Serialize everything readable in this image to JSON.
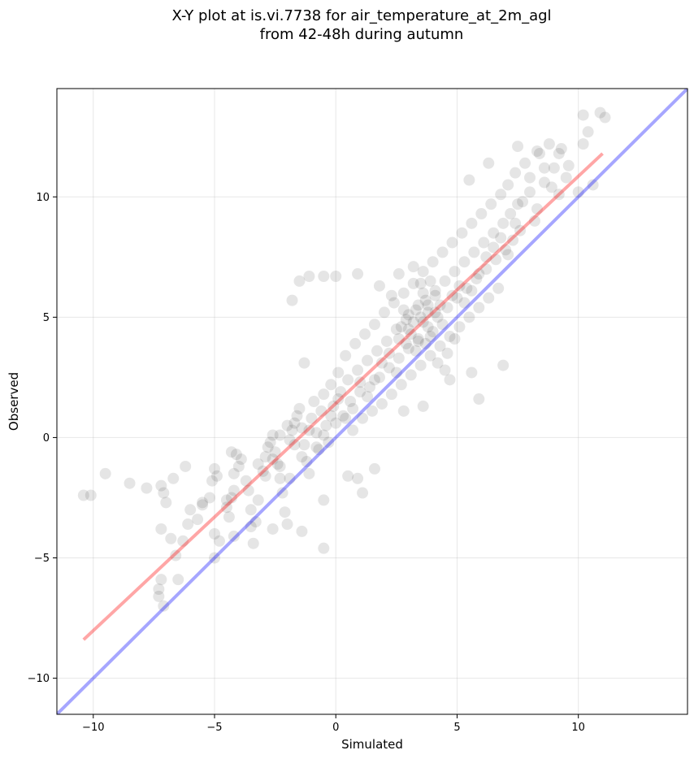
{
  "chart_data": {
    "type": "scatter",
    "title": [
      "X-Y plot at is.vi.7738 for air_temperature_at_2m_agl",
      "from 42-48h during autumn"
    ],
    "xlabel": "Simulated",
    "ylabel": "Observed",
    "xlim": [
      -11.5,
      14.5
    ],
    "ylim": [
      -11.5,
      14.5
    ],
    "xticks": [
      -10,
      -5,
      0,
      5,
      10
    ],
    "yticks": [
      -10,
      -5,
      0,
      5,
      10
    ],
    "xtick_labels": [
      "−10",
      "−5",
      "0",
      "5",
      "10"
    ],
    "ytick_labels": [
      "−10",
      "−5",
      "0",
      "5",
      "10"
    ],
    "grid": true,
    "point_color": "#000000",
    "point_alpha": 0.1,
    "lines": [
      {
        "role": "regression-fit",
        "color": "#ff0000",
        "alpha": 0.35,
        "x": [
          -10.4,
          11.0
        ],
        "y": [
          -8.4,
          11.8
        ]
      },
      {
        "role": "one-to-one",
        "color": "#0000ff",
        "alpha": 0.35,
        "x": [
          -11.5,
          14.5
        ],
        "y": [
          -11.5,
          14.5
        ]
      }
    ],
    "points": [
      [
        -10.4,
        -2.4
      ],
      [
        -10.1,
        -2.4
      ],
      [
        -9.5,
        -1.5
      ],
      [
        -8.5,
        -1.9
      ],
      [
        -7.8,
        -2.1
      ],
      [
        -7.2,
        -2.0
      ],
      [
        -7.1,
        -2.3
      ],
      [
        -7.0,
        -2.7
      ],
      [
        -6.7,
        -1.7
      ],
      [
        -6.2,
        -1.2
      ],
      [
        -7.2,
        -5.9
      ],
      [
        -7.3,
        -6.3
      ],
      [
        -7.3,
        -6.6
      ],
      [
        -7.1,
        -7.0
      ],
      [
        -7.2,
        -3.8
      ],
      [
        -6.8,
        -4.2
      ],
      [
        -6.5,
        -5.9
      ],
      [
        -6.3,
        -4.3
      ],
      [
        -6.1,
        -3.6
      ],
      [
        -6.0,
        -3.0
      ],
      [
        -5.7,
        -3.4
      ],
      [
        -5.5,
        -2.7
      ],
      [
        -5.2,
        -2.5
      ],
      [
        -5.1,
        -1.8
      ],
      [
        -5.0,
        -1.3
      ],
      [
        -4.9,
        -1.6
      ],
      [
        -5.0,
        -4.0
      ],
      [
        -4.8,
        -4.3
      ],
      [
        -4.5,
        -2.9
      ],
      [
        -4.4,
        -3.3
      ],
      [
        -4.3,
        -2.5
      ],
      [
        -4.2,
        -2.2
      ],
      [
        -4.2,
        -1.5
      ],
      [
        -4.0,
        -1.2
      ],
      [
        -4.3,
        -0.6
      ],
      [
        -4.1,
        -0.7
      ],
      [
        -3.9,
        -0.9
      ],
      [
        -3.7,
        -1.8
      ],
      [
        -3.6,
        -2.2
      ],
      [
        -3.5,
        -3.0
      ],
      [
        -3.4,
        -4.4
      ],
      [
        -3.3,
        -3.5
      ],
      [
        -3.2,
        -2.6
      ],
      [
        -3.0,
        -1.4
      ],
      [
        -2.9,
        -0.8
      ],
      [
        -2.8,
        -0.4
      ],
      [
        -2.7,
        -0.2
      ],
      [
        -2.6,
        0.1
      ],
      [
        -2.5,
        -0.6
      ],
      [
        -2.4,
        -1.1
      ],
      [
        -2.3,
        -1.7
      ],
      [
        -2.2,
        -2.3
      ],
      [
        -2.1,
        -3.1
      ],
      [
        -2.0,
        -3.6
      ],
      [
        -1.9,
        -0.1
      ],
      [
        -1.8,
        0.3
      ],
      [
        -1.7,
        0.6
      ],
      [
        -1.6,
        0.9
      ],
      [
        -1.5,
        1.2
      ],
      [
        -1.4,
        0.4
      ],
      [
        -1.3,
        -0.3
      ],
      [
        -1.2,
        -1.0
      ],
      [
        -1.1,
        -1.5
      ],
      [
        -1.0,
        0.8
      ],
      [
        -0.9,
        1.5
      ],
      [
        -0.8,
        0.2
      ],
      [
        -0.7,
        -0.5
      ],
      [
        -0.6,
        1.1
      ],
      [
        -0.5,
        1.8
      ],
      [
        -0.4,
        0.5
      ],
      [
        -0.3,
        -0.2
      ],
      [
        -0.2,
        2.2
      ],
      [
        -0.1,
        1.3
      ],
      [
        0.0,
        0.6
      ],
      [
        0.1,
        2.7
      ],
      [
        0.2,
        1.9
      ],
      [
        0.3,
        0.9
      ],
      [
        0.4,
        3.4
      ],
      [
        0.5,
        2.4
      ],
      [
        0.6,
        1.5
      ],
      [
        0.7,
        0.3
      ],
      [
        0.8,
        3.9
      ],
      [
        0.9,
        2.8
      ],
      [
        1.0,
        1.9
      ],
      [
        1.1,
        0.8
      ],
      [
        1.2,
        4.3
      ],
      [
        1.3,
        3.2
      ],
      [
        1.4,
        2.1
      ],
      [
        1.5,
        1.1
      ],
      [
        1.6,
        4.7
      ],
      [
        1.7,
        3.6
      ],
      [
        1.8,
        2.5
      ],
      [
        1.9,
        1.4
      ],
      [
        2.0,
        5.2
      ],
      [
        2.1,
        4.0
      ],
      [
        2.2,
        2.9
      ],
      [
        2.3,
        1.8
      ],
      [
        2.4,
        5.6
      ],
      [
        2.5,
        4.5
      ],
      [
        2.6,
        3.3
      ],
      [
        2.7,
        2.2
      ],
      [
        2.8,
        6.0
      ],
      [
        2.9,
        4.9
      ],
      [
        3.0,
        3.7
      ],
      [
        3.1,
        2.6
      ],
      [
        3.2,
        6.4
      ],
      [
        3.3,
        5.3
      ],
      [
        3.4,
        4.1
      ],
      [
        3.5,
        3.0
      ],
      [
        3.6,
        6.9
      ],
      [
        3.7,
        5.7
      ],
      [
        3.8,
        4.6
      ],
      [
        3.9,
        3.4
      ],
      [
        4.0,
        7.3
      ],
      [
        4.1,
        6.1
      ],
      [
        4.2,
        5.0
      ],
      [
        4.3,
        3.8
      ],
      [
        4.4,
        7.7
      ],
      [
        4.5,
        6.5
      ],
      [
        4.6,
        5.4
      ],
      [
        4.7,
        4.2
      ],
      [
        4.8,
        8.1
      ],
      [
        4.9,
        6.9
      ],
      [
        5.0,
        5.8
      ],
      [
        5.1,
        4.6
      ],
      [
        5.2,
        8.5
      ],
      [
        5.3,
        7.3
      ],
      [
        5.4,
        6.2
      ],
      [
        5.5,
        5.0
      ],
      [
        5.6,
        8.9
      ],
      [
        5.7,
        7.7
      ],
      [
        5.8,
        6.6
      ],
      [
        5.9,
        5.4
      ],
      [
        6.0,
        9.3
      ],
      [
        6.1,
        8.1
      ],
      [
        6.2,
        7.0
      ],
      [
        6.3,
        5.8
      ],
      [
        6.4,
        9.7
      ],
      [
        6.5,
        8.5
      ],
      [
        6.6,
        7.4
      ],
      [
        6.7,
        6.2
      ],
      [
        6.8,
        10.1
      ],
      [
        6.9,
        8.9
      ],
      [
        7.0,
        7.8
      ],
      [
        7.1,
        10.5
      ],
      [
        7.2,
        9.3
      ],
      [
        7.3,
        8.2
      ],
      [
        7.4,
        11.0
      ],
      [
        7.5,
        9.7
      ],
      [
        7.6,
        8.6
      ],
      [
        7.8,
        11.4
      ],
      [
        8.0,
        10.2
      ],
      [
        8.2,
        9.0
      ],
      [
        8.4,
        11.8
      ],
      [
        8.6,
        10.6
      ],
      [
        8.8,
        12.2
      ],
      [
        9.0,
        11.2
      ],
      [
        9.3,
        12.0
      ],
      [
        9.6,
        11.3
      ],
      [
        10.0,
        10.2
      ],
      [
        10.2,
        12.2
      ],
      [
        10.4,
        12.7
      ],
      [
        10.6,
        10.5
      ],
      [
        10.9,
        13.5
      ],
      [
        11.1,
        13.3
      ],
      [
        10.2,
        13.4
      ],
      [
        9.2,
        11.8
      ],
      [
        8.3,
        11.9
      ],
      [
        7.5,
        12.1
      ],
      [
        6.3,
        11.4
      ],
      [
        5.5,
        10.7
      ],
      [
        5.9,
        1.6
      ],
      [
        6.9,
        3.0
      ],
      [
        5.6,
        2.7
      ],
      [
        4.7,
        2.4
      ],
      [
        3.6,
        1.3
      ],
      [
        2.8,
        1.1
      ],
      [
        1.6,
        -1.3
      ],
      [
        1.1,
        -2.3
      ],
      [
        0.9,
        -1.7
      ],
      [
        0.5,
        -1.6
      ],
      [
        -0.5,
        -2.6
      ],
      [
        -0.5,
        -4.6
      ],
      [
        -1.4,
        -3.9
      ],
      [
        -1.1,
        6.7
      ],
      [
        -1.5,
        6.5
      ],
      [
        -1.8,
        5.7
      ],
      [
        -0.5,
        6.7
      ],
      [
        0.0,
        6.7
      ],
      [
        0.9,
        6.8
      ],
      [
        -1.3,
        3.1
      ],
      [
        -2.3,
        -1.2
      ],
      [
        -1.9,
        -1.7
      ],
      [
        -2.6,
        -3.8
      ],
      [
        -3.5,
        -3.7
      ],
      [
        -4.2,
        -4.1
      ],
      [
        -4.5,
        -2.6
      ],
      [
        -5.0,
        -5.0
      ],
      [
        -5.5,
        -2.8
      ],
      [
        -6.6,
        -4.9
      ],
      [
        1.8,
        6.3
      ],
      [
        2.3,
        5.9
      ],
      [
        2.6,
        6.8
      ],
      [
        3.2,
        7.1
      ],
      [
        3.5,
        6.4
      ],
      [
        3.8,
        5.2
      ],
      [
        4.1,
        5.9
      ],
      [
        4.4,
        4.7
      ],
      [
        4.6,
        3.5
      ],
      [
        4.9,
        4.1
      ],
      [
        3.4,
        5.5
      ],
      [
        3.6,
        4.8
      ],
      [
        3.1,
        4.3
      ],
      [
        2.9,
        3.9
      ],
      [
        2.7,
        4.6
      ],
      [
        3.3,
        3.6
      ],
      [
        3.9,
        4.2
      ],
      [
        4.2,
        3.1
      ],
      [
        4.5,
        2.8
      ],
      [
        3.0,
        5.1
      ],
      [
        2.5,
        2.7
      ],
      [
        2.2,
        3.5
      ],
      [
        1.9,
        3.1
      ],
      [
        1.6,
        2.4
      ],
      [
        1.3,
        1.7
      ],
      [
        1.0,
        2.3
      ],
      [
        0.7,
        1.2
      ],
      [
        0.4,
        0.8
      ],
      [
        0.1,
        1.6
      ],
      [
        -0.2,
        0.9
      ],
      [
        -0.5,
        0.1
      ],
      [
        -0.8,
        -0.4
      ],
      [
        -1.1,
        0.3
      ],
      [
        -1.4,
        -0.8
      ],
      [
        -1.7,
        -0.3
      ],
      [
        -2.0,
        0.5
      ],
      [
        -2.3,
        0.1
      ],
      [
        -2.6,
        -0.9
      ],
      [
        -2.9,
        -1.6
      ],
      [
        -3.2,
        -1.1
      ],
      [
        3.7,
        3.9
      ],
      [
        4.0,
        4.4
      ],
      [
        4.3,
        5.5
      ],
      [
        4.8,
        5.9
      ],
      [
        5.1,
        6.3
      ],
      [
        5.3,
        5.6
      ],
      [
        5.6,
        6.1
      ],
      [
        5.9,
        6.8
      ],
      [
        6.2,
        7.5
      ],
      [
        6.5,
        7.9
      ],
      [
        3.5,
        5.0
      ],
      [
        3.8,
        5.5
      ],
      [
        3.2,
        4.8
      ],
      [
        3.0,
        4.5
      ],
      [
        2.8,
        5.3
      ],
      [
        3.6,
        6.0
      ],
      [
        4.1,
        5.2
      ],
      [
        3.4,
        4.0
      ],
      [
        2.6,
        4.1
      ],
      [
        3.9,
        6.5
      ],
      [
        6.8,
        8.3
      ],
      [
        7.1,
        7.6
      ],
      [
        7.4,
        8.9
      ],
      [
        7.7,
        9.8
      ],
      [
        8.0,
        10.8
      ],
      [
        8.3,
        9.5
      ],
      [
        8.6,
        11.2
      ],
      [
        8.9,
        10.4
      ],
      [
        9.2,
        10.1
      ],
      [
        9.5,
        10.8
      ]
    ]
  }
}
